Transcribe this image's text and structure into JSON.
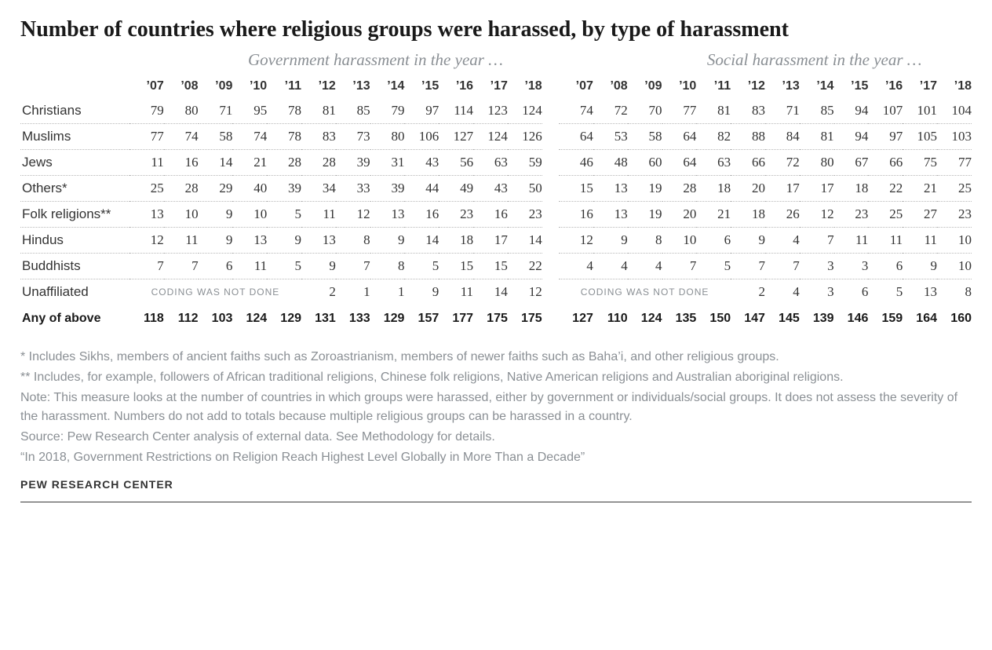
{
  "title": "Number of countries where religious groups were harassed, by type of harassment",
  "group_labels": {
    "gov": "Government harassment in the year …",
    "soc": "Social harassment in the year …"
  },
  "years": [
    "’07",
    "’08",
    "’09",
    "’10",
    "’11",
    "’12",
    "’13",
    "’14",
    "’15",
    "’16",
    "’17",
    "’18"
  ],
  "coding_not_done": "CODING WAS NOT DONE",
  "rows": [
    {
      "label": "Christians",
      "gov": [
        79,
        80,
        71,
        95,
        78,
        81,
        85,
        79,
        97,
        114,
        123,
        124
      ],
      "soc": [
        74,
        72,
        70,
        77,
        81,
        83,
        71,
        85,
        94,
        107,
        101,
        104
      ]
    },
    {
      "label": "Muslims",
      "gov": [
        77,
        74,
        58,
        74,
        78,
        83,
        73,
        80,
        106,
        127,
        124,
        126
      ],
      "soc": [
        64,
        53,
        58,
        64,
        82,
        88,
        84,
        81,
        94,
        97,
        105,
        103
      ]
    },
    {
      "label": "Jews",
      "gov": [
        11,
        16,
        14,
        21,
        28,
        28,
        39,
        31,
        43,
        56,
        63,
        59
      ],
      "soc": [
        46,
        48,
        60,
        64,
        63,
        66,
        72,
        80,
        67,
        66,
        75,
        77
      ]
    },
    {
      "label": "Others*",
      "gov": [
        25,
        28,
        29,
        40,
        39,
        34,
        33,
        39,
        44,
        49,
        43,
        50
      ],
      "soc": [
        15,
        13,
        19,
        28,
        18,
        20,
        17,
        17,
        18,
        22,
        21,
        25
      ]
    },
    {
      "label": "Folk religions**",
      "gov": [
        13,
        10,
        9,
        10,
        5,
        11,
        12,
        13,
        16,
        23,
        16,
        23
      ],
      "soc": [
        16,
        13,
        19,
        20,
        21,
        18,
        26,
        12,
        23,
        25,
        27,
        23
      ]
    },
    {
      "label": "Hindus",
      "gov": [
        12,
        11,
        9,
        13,
        9,
        13,
        8,
        9,
        14,
        18,
        17,
        14
      ],
      "soc": [
        12,
        9,
        8,
        10,
        6,
        9,
        4,
        7,
        11,
        11,
        11,
        10
      ]
    },
    {
      "label": "Buddhists",
      "gov": [
        7,
        7,
        6,
        11,
        5,
        9,
        7,
        8,
        5,
        15,
        15,
        22
      ],
      "soc": [
        4,
        4,
        4,
        7,
        5,
        7,
        7,
        3,
        3,
        6,
        9,
        10
      ]
    }
  ],
  "unaffiliated": {
    "label": "Unaffiliated",
    "gov_coded": false,
    "gov_values": [
      2,
      1,
      1,
      9,
      11,
      14,
      12
    ],
    "soc_coded": false,
    "soc_values": [
      2,
      4,
      3,
      6,
      5,
      13,
      8
    ]
  },
  "total": {
    "label": "Any of above",
    "gov": [
      118,
      112,
      103,
      124,
      129,
      131,
      133,
      129,
      157,
      177,
      175,
      175
    ],
    "soc": [
      127,
      110,
      124,
      135,
      150,
      147,
      145,
      139,
      146,
      159,
      164,
      160
    ]
  },
  "footnotes": {
    "star": "* Includes Sikhs, members of ancient faiths such as Zoroastrianism, members of newer faiths such as Baha’i, and other religious groups.",
    "dstar": "** Includes, for example, followers of African traditional religions, Chinese folk religions, Native American religions and Australian aboriginal religions.",
    "note": "Note: This measure looks at the number of countries in which groups were harassed, either by government or individuals/social groups. It does not assess the severity of the harassment. Numbers do not add to totals because multiple religious groups can be harassed in a country.",
    "source": "Source: Pew Research Center analysis of external data. See Methodology for details.",
    "quote": "“In 2018, Government Restrictions on Religion Reach Highest Level Globally in More Than a Decade”"
  },
  "brand": "PEW RESEARCH CENTER",
  "style": {
    "title_fontsize": 28,
    "cell_fontsize": 17,
    "header_fontsize": 16,
    "footnote_fontsize": 16,
    "text_color": "#333333",
    "muted_color": "#8a8f94",
    "dotted_border_color": "#b8b8b8",
    "rule_color": "#3a3a3a",
    "background": "#ffffff"
  }
}
